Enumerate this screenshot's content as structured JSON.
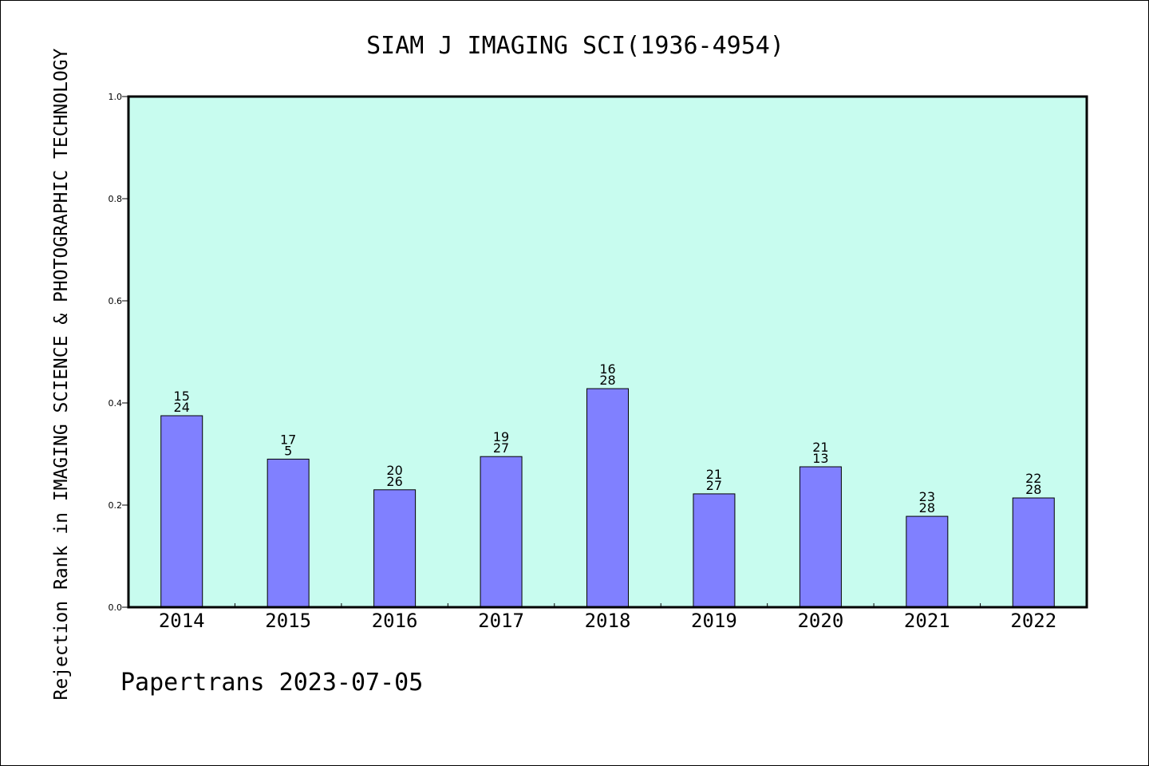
{
  "chart_data": {
    "type": "bar",
    "title": "SIAM J IMAGING SCI(1936-4954)",
    "xlabel": "",
    "ylabel": "Rejection Rank in IMAGING SCIENCE & PHOTOGRAPHIC TECHNOLOGY",
    "categories": [
      "2014",
      "2015",
      "2016",
      "2017",
      "2018",
      "2019",
      "2020",
      "2021",
      "2022"
    ],
    "values": [
      0.375,
      0.29,
      0.23,
      0.295,
      0.428,
      0.222,
      0.275,
      0.178,
      0.214
    ],
    "label_top": [
      "15",
      "17",
      "20",
      "19",
      "16",
      "21",
      "21",
      "23",
      "22"
    ],
    "label_bottom": [
      "24",
      "5",
      "26",
      "27",
      "28",
      "27",
      "13",
      "28",
      "28"
    ],
    "yticks": [
      "0.0",
      "0.2",
      "0.4",
      "0.6",
      "0.8",
      "1.0"
    ],
    "ylim": [
      0,
      1.0
    ],
    "grid": false,
    "colors": {
      "plot_background": "#c8fcef",
      "bar_fill": "#8080ff",
      "bar_stroke": "#000000"
    }
  },
  "footer": "Papertrans 2023-07-05"
}
